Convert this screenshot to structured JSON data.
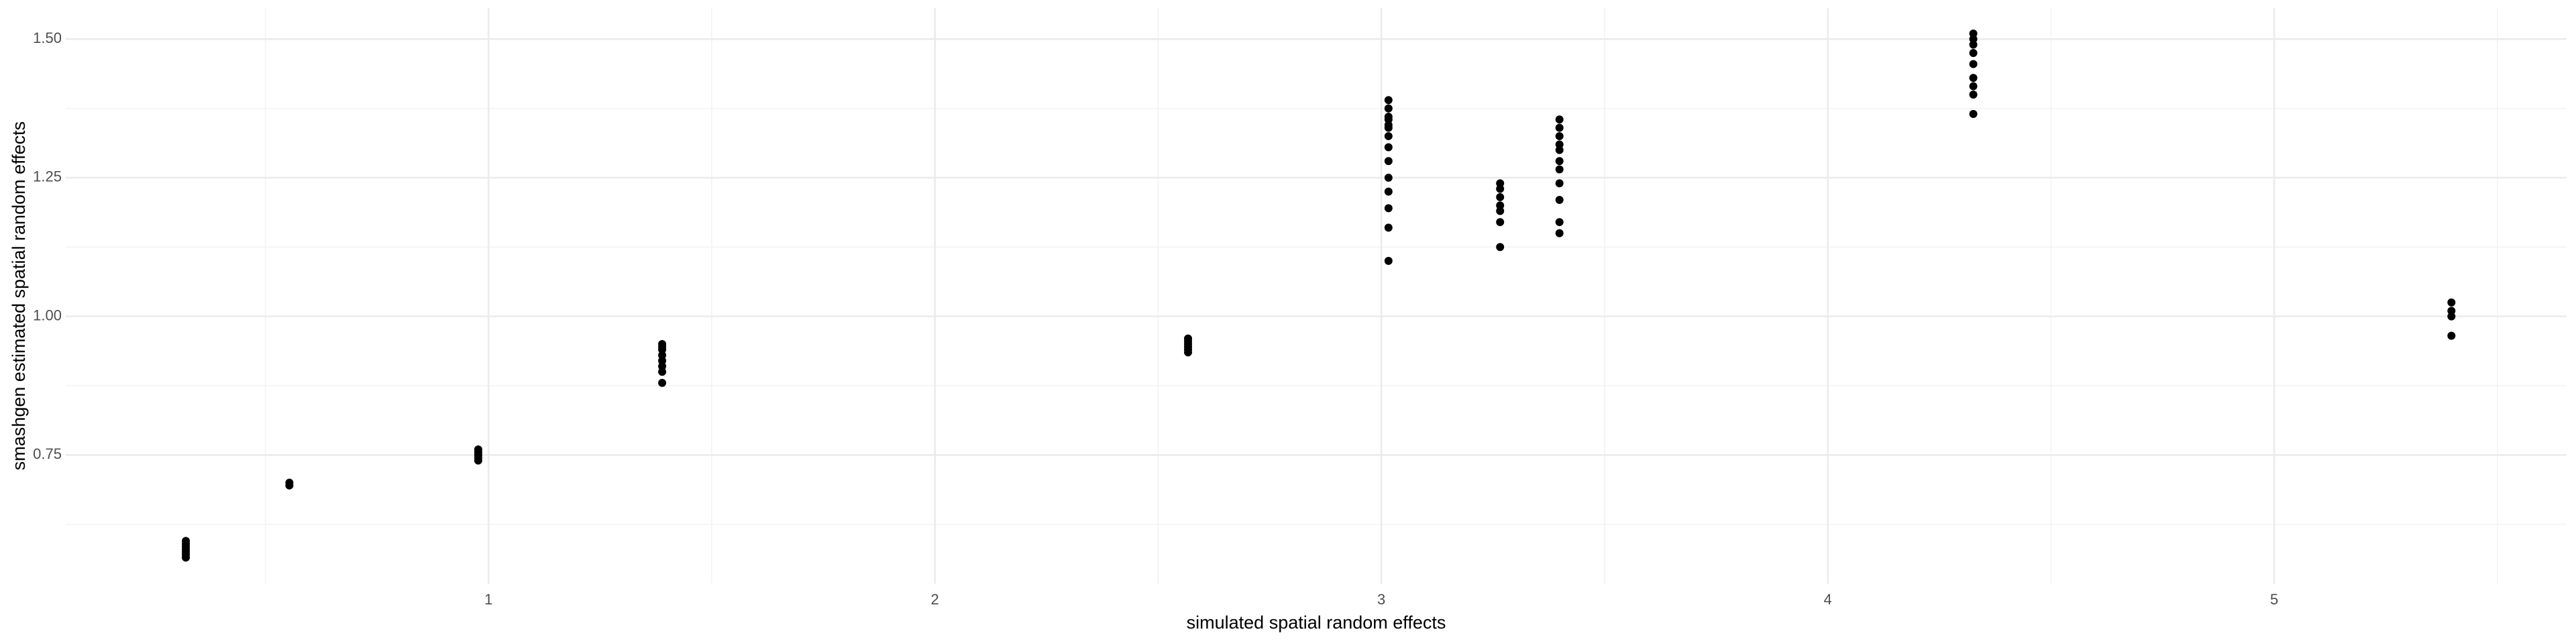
{
  "chart_data": {
    "type": "scatter",
    "x_label": "simulated spatial random effects",
    "y_label": "smashgen estimated spatial random effects",
    "x": [
      0.322,
      0.322,
      0.322,
      0.322,
      0.322,
      0.322,
      0.322,
      0.554,
      0.554,
      0.977,
      0.977,
      0.977,
      0.977,
      0.977,
      1.389,
      1.389,
      1.389,
      1.389,
      1.389,
      1.389,
      1.389,
      1.389,
      2.567,
      2.567,
      2.567,
      2.567,
      2.567,
      2.567,
      3.016,
      3.016,
      3.016,
      3.016,
      3.016,
      3.016,
      3.016,
      3.016,
      3.016,
      3.016,
      3.016,
      3.016,
      3.016,
      3.016,
      3.266,
      3.266,
      3.266,
      3.266,
      3.266,
      3.266,
      3.266,
      3.399,
      3.399,
      3.399,
      3.399,
      3.399,
      3.399,
      3.399,
      3.399,
      3.399,
      3.399,
      3.399,
      4.326,
      4.326,
      4.326,
      4.326,
      4.326,
      4.326,
      4.326,
      4.326,
      4.326,
      5.397,
      5.397,
      5.397,
      5.397
    ],
    "values": [
      0.565,
      0.57,
      0.575,
      0.58,
      0.585,
      0.59,
      0.595,
      0.7,
      0.695,
      0.76,
      0.755,
      0.75,
      0.745,
      0.74,
      0.95,
      0.945,
      0.94,
      0.93,
      0.92,
      0.91,
      0.9,
      0.88,
      0.96,
      0.955,
      0.95,
      0.945,
      0.94,
      0.935,
      1.39,
      1.375,
      1.36,
      1.355,
      1.345,
      1.34,
      1.325,
      1.305,
      1.28,
      1.25,
      1.225,
      1.195,
      1.16,
      1.1,
      1.24,
      1.23,
      1.215,
      1.2,
      1.19,
      1.17,
      1.125,
      1.355,
      1.34,
      1.325,
      1.31,
      1.3,
      1.28,
      1.265,
      1.24,
      1.21,
      1.17,
      1.15,
      1.51,
      1.5,
      1.49,
      1.475,
      1.455,
      1.43,
      1.415,
      1.4,
      1.365,
      1.025,
      1.01,
      1.0,
      0.965
    ],
    "color": "#000000",
    "xlim": [
      0.053,
      5.655
    ],
    "ylim": [
      0.518,
      1.556
    ],
    "xticks": [
      1,
      2,
      3,
      4,
      5
    ],
    "yticks": [
      {
        "value": 0.75,
        "label": "0.75"
      },
      {
        "value": 1,
        "label": "1.00"
      },
      {
        "value": 1.25,
        "label": "1.25"
      },
      {
        "value": 1.5,
        "label": "1.50"
      }
    ],
    "xminorticks": [
      0.5,
      1.5,
      2.5,
      3.5,
      4.5,
      5.5
    ],
    "yminorticks": [
      0.625,
      0.875,
      1.125,
      1.375
    ],
    "grid": true
  }
}
